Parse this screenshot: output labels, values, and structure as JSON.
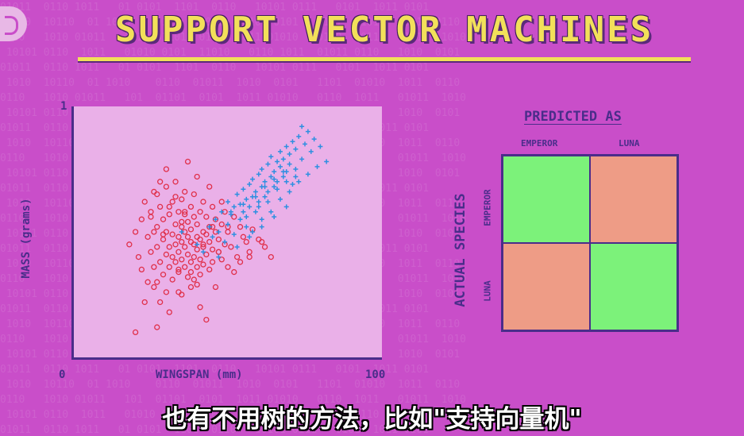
{
  "title": "SUPPORT VECTOR MACHINES",
  "scatter": {
    "xlabel": "WINGSPAN (mm)",
    "ylabel": "MASS (grams)",
    "x_min_label": "0",
    "x_max_label": "100",
    "y_max_label": "1",
    "colors": {
      "plot_bg": "#eab0e8",
      "emperor": "#e0304a",
      "luna": "#2f8fe0",
      "axis": "#4a2d8a"
    }
  },
  "chart_data": {
    "type": "scatter",
    "xlabel": "WINGSPAN (mm)",
    "ylabel": "MASS (grams)",
    "xlim": [
      0,
      100
    ],
    "ylim": [
      0,
      1
    ],
    "series": [
      {
        "marker": "circle",
        "color": "#e0304a",
        "x": [
          18,
          20,
          21,
          22,
          22,
          23,
          24,
          24,
          25,
          25,
          26,
          26,
          26,
          27,
          27,
          27,
          28,
          28,
          28,
          29,
          29,
          29,
          30,
          30,
          30,
          30,
          31,
          31,
          31,
          32,
          32,
          32,
          32,
          33,
          33,
          33,
          33,
          34,
          34,
          34,
          34,
          35,
          35,
          35,
          35,
          35,
          36,
          36,
          36,
          36,
          36,
          37,
          37,
          37,
          37,
          38,
          38,
          38,
          38,
          38,
          39,
          39,
          39,
          39,
          40,
          40,
          40,
          40,
          40,
          41,
          41,
          41,
          41,
          42,
          42,
          42,
          42,
          43,
          43,
          43,
          44,
          44,
          44,
          45,
          45,
          45,
          46,
          46,
          47,
          47,
          48,
          48,
          49,
          49,
          50,
          51,
          52,
          53,
          54,
          55,
          56,
          57,
          58,
          60,
          62,
          64,
          23,
          27,
          31,
          34,
          38,
          41,
          46,
          50,
          54,
          43,
          30,
          37,
          44,
          27,
          20,
          48,
          36,
          33,
          52,
          40,
          25,
          45,
          29,
          57,
          31,
          39,
          35,
          42,
          26,
          47,
          61,
          34,
          50,
          28
        ],
        "y": [
          0.45,
          0.1,
          0.4,
          0.55,
          0.35,
          0.62,
          0.48,
          0.3,
          0.42,
          0.58,
          0.5,
          0.36,
          0.28,
          0.65,
          0.44,
          0.52,
          0.38,
          0.6,
          0.22,
          0.47,
          0.55,
          0.33,
          0.41,
          0.68,
          0.5,
          0.26,
          0.44,
          0.57,
          0.36,
          0.49,
          0.62,
          0.31,
          0.4,
          0.53,
          0.45,
          0.7,
          0.38,
          0.48,
          0.58,
          0.34,
          0.42,
          0.52,
          0.46,
          0.63,
          0.39,
          0.25,
          0.5,
          0.44,
          0.57,
          0.36,
          0.66,
          0.48,
          0.41,
          0.54,
          0.32,
          0.46,
          0.6,
          0.38,
          0.51,
          0.28,
          0.45,
          0.56,
          0.4,
          0.65,
          0.48,
          0.36,
          0.53,
          0.43,
          0.72,
          0.47,
          0.39,
          0.58,
          0.33,
          0.5,
          0.44,
          0.62,
          0.37,
          0.49,
          0.56,
          0.41,
          0.52,
          0.35,
          0.46,
          0.6,
          0.43,
          0.38,
          0.5,
          0.55,
          0.42,
          0.47,
          0.53,
          0.39,
          0.58,
          0.45,
          0.5,
          0.44,
          0.56,
          0.4,
          0.52,
          0.48,
          0.46,
          0.42,
          0.51,
          0.47,
          0.44,
          0.4,
          0.22,
          0.3,
          0.18,
          0.26,
          0.34,
          0.2,
          0.28,
          0.36,
          0.38,
          0.15,
          0.75,
          0.78,
          0.68,
          0.12,
          0.5,
          0.62,
          0.58,
          0.64,
          0.34,
          0.29,
          0.56,
          0.52,
          0.49,
          0.4,
          0.6,
          0.31,
          0.54,
          0.45,
          0.66,
          0.42,
          0.46,
          0.35,
          0.52,
          0.7
        ]
      },
      {
        "marker": "plus",
        "color": "#2f8fe0",
        "x": [
          35,
          40,
          42,
          44,
          45,
          46,
          47,
          48,
          49,
          50,
          50,
          51,
          52,
          52,
          53,
          54,
          54,
          55,
          55,
          56,
          56,
          57,
          57,
          58,
          58,
          59,
          59,
          60,
          60,
          61,
          61,
          62,
          62,
          63,
          63,
          64,
          64,
          65,
          65,
          66,
          66,
          67,
          67,
          68,
          68,
          69,
          69,
          70,
          70,
          71,
          72,
          72,
          73,
          74,
          75,
          76,
          77,
          78,
          80,
          82,
          47,
          53,
          58,
          61,
          64,
          67,
          70,
          73,
          76,
          79,
          56,
          60,
          63,
          66,
          69,
          72,
          51,
          55,
          59,
          62,
          65,
          68,
          71,
          74,
          57,
          61,
          65,
          69
        ],
        "y": [
          0.5,
          0.45,
          0.42,
          0.52,
          0.48,
          0.55,
          0.5,
          0.58,
          0.46,
          0.62,
          0.53,
          0.57,
          0.6,
          0.49,
          0.65,
          0.55,
          0.61,
          0.58,
          0.67,
          0.63,
          0.52,
          0.69,
          0.6,
          0.64,
          0.71,
          0.58,
          0.66,
          0.73,
          0.62,
          0.68,
          0.75,
          0.64,
          0.7,
          0.77,
          0.66,
          0.72,
          0.8,
          0.68,
          0.74,
          0.78,
          0.7,
          0.76,
          0.82,
          0.72,
          0.79,
          0.74,
          0.84,
          0.77,
          0.81,
          0.86,
          0.75,
          0.83,
          0.88,
          0.79,
          0.85,
          0.9,
          0.82,
          0.87,
          0.84,
          0.78,
          0.4,
          0.44,
          0.5,
          0.55,
          0.58,
          0.63,
          0.66,
          0.7,
          0.73,
          0.76,
          0.56,
          0.6,
          0.62,
          0.67,
          0.7,
          0.72,
          0.58,
          0.61,
          0.64,
          0.68,
          0.71,
          0.74,
          0.69,
          0.92,
          0.48,
          0.52,
          0.56,
          0.6
        ]
      }
    ]
  },
  "confusion": {
    "title": "PREDICTED AS",
    "actual_label": "ACTUAL SPECIES",
    "cols": [
      "EMPEROR",
      "LUNA"
    ],
    "rows": [
      "EMPEROR",
      "LUNA"
    ],
    "cell_colors": [
      "#7cf27a",
      "#ee9c86",
      "#ee9c86",
      "#7cf27a"
    ]
  },
  "subtitle": "也有不用树的方法，比如\"支持向量机\""
}
